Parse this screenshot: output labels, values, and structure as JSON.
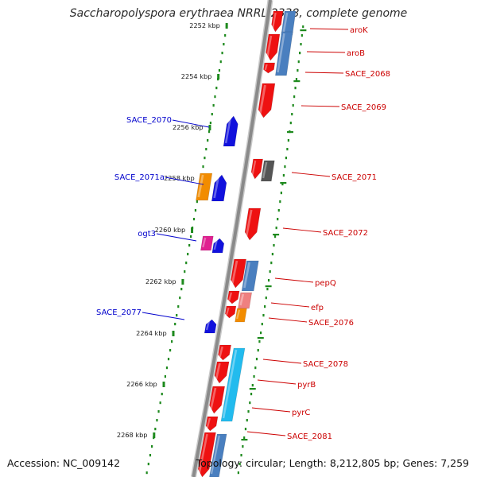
{
  "title": "Saccharopolyspora erythraea NRRL 2338, complete genome",
  "accession": "Accession: NC_009142",
  "topology": "Topology: circular; Length: 8,212,805 bp; Genes: 7,259",
  "colors": {
    "forward": "#ee1111",
    "reverse": "#1111dd",
    "orange": "#f28c00",
    "steel": "#4a7fbf",
    "grey": "#555555",
    "pink": "#e02090",
    "pinkLight": "#ef8080",
    "cyan": "#22bbee",
    "tick": "#1e8a1e",
    "backbone": "#8a8a8a",
    "rightLabel": "#cc0000",
    "leftLabel": "#0000cc"
  },
  "ticks": [
    "2252 kbp",
    "2254 kbp",
    "2256 kbp",
    "2258 kbp",
    "2260 kbp",
    "2262 kbp",
    "2264 kbp",
    "2266 kbp",
    "2268 kbp"
  ],
  "right_labels": [
    "aroK",
    "aroB",
    "SACE_2068",
    "SACE_2069",
    "SACE_2071",
    "SACE_2072",
    "pepQ",
    "efp",
    "SACE_2076",
    "SACE_2078",
    "pyrB",
    "pyrC",
    "SACE_2081"
  ],
  "left_labels": [
    "SACE_2070",
    "SACE_2071a",
    "ogt3",
    "SACE_2077"
  ]
}
